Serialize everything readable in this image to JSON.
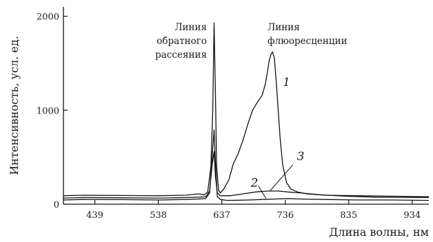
{
  "chart_data": {
    "type": "line",
    "xlabel": "Длина волны, нм",
    "ylabel": "Интенсивность, усл. ед.",
    "xlim": [
      390,
      960
    ],
    "ylim": [
      0,
      2100
    ],
    "x_ticks": [
      439,
      538,
      637,
      736,
      835,
      934
    ],
    "y_ticks": [
      0,
      1000,
      2000
    ],
    "grid": false,
    "annotations": [
      {
        "id": "backscatter",
        "lines": [
          "Линия",
          "обратного",
          "рассеяния"
        ]
      },
      {
        "id": "fluorescence",
        "lines": [
          "Линия",
          "флюоресценции"
        ]
      }
    ],
    "series": [
      {
        "label": "1",
        "x": [
          390,
          420,
          480,
          540,
          580,
          600,
          610,
          615,
          620,
          623,
          625,
          627,
          629,
          632,
          635,
          640,
          648,
          655,
          662,
          670,
          678,
          685,
          692,
          700,
          705,
          708,
          711,
          714,
          716,
          719,
          722,
          725,
          728,
          732,
          738,
          745,
          755,
          770,
          800,
          850,
          900,
          960
        ],
        "y": [
          90,
          95,
          92,
          90,
          95,
          110,
          100,
          130,
          400,
          1000,
          1930,
          1200,
          400,
          150,
          120,
          160,
          260,
          430,
          530,
          680,
          860,
          1000,
          1080,
          1160,
          1280,
          1400,
          1530,
          1600,
          1620,
          1560,
          1300,
          1000,
          700,
          420,
          230,
          160,
          130,
          110,
          95,
          90,
          85,
          80
        ]
      },
      {
        "label": "2",
        "x": [
          390,
          420,
          480,
          540,
          580,
          600,
          612,
          618,
          622,
          625,
          627,
          630,
          635,
          645,
          660,
          680,
          700,
          720,
          740,
          760,
          800,
          850,
          900,
          960
        ],
        "y": [
          45,
          50,
          48,
          45,
          50,
          55,
          60,
          120,
          500,
          790,
          450,
          80,
          50,
          40,
          42,
          45,
          50,
          55,
          60,
          55,
          50,
          45,
          45,
          40
        ]
      },
      {
        "label": "3",
        "x": [
          390,
          420,
          480,
          540,
          580,
          600,
          612,
          618,
          622,
          625,
          627,
          630,
          635,
          650,
          670,
          690,
          710,
          725,
          740,
          760,
          790,
          830,
          880,
          960
        ],
        "y": [
          65,
          70,
          68,
          65,
          70,
          75,
          80,
          140,
          420,
          560,
          300,
          120,
          90,
          90,
          110,
          130,
          140,
          140,
          130,
          120,
          100,
          85,
          75,
          70
        ]
      }
    ]
  }
}
